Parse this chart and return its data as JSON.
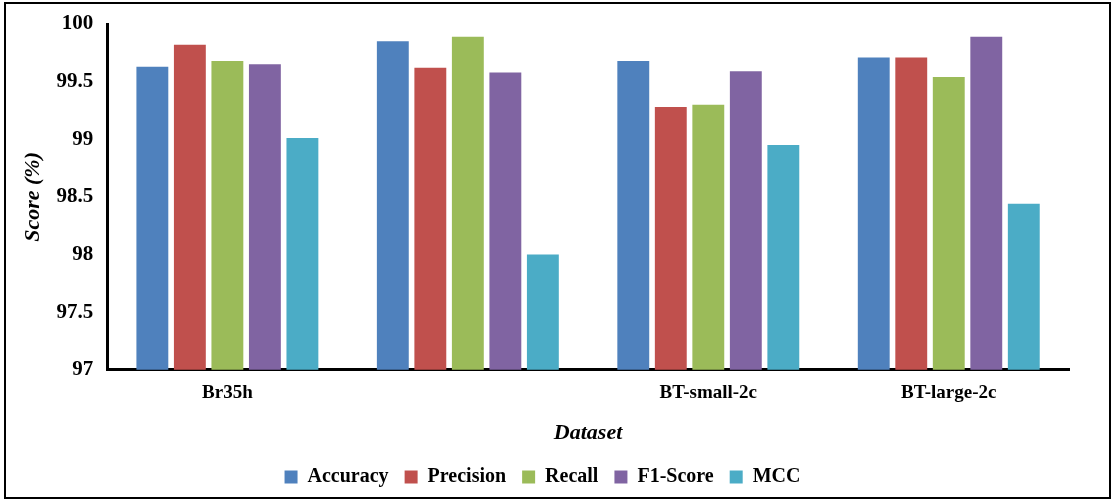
{
  "chart_data": {
    "type": "bar",
    "xlabel": "Dataset",
    "ylabel": "Score (%)",
    "categories": [
      "Br35h",
      null,
      "BT-small-2c",
      "BT-large-2c"
    ],
    "series": [
      {
        "name": "Accuracy",
        "color": "#4f81bd",
        "values": [
          99.63,
          99.85,
          99.68,
          99.71
        ]
      },
      {
        "name": "Precision",
        "color": "#c0504d",
        "values": [
          99.82,
          99.62,
          99.28,
          99.71
        ]
      },
      {
        "name": "Recall",
        "color": "#9bbb59",
        "values": [
          99.68,
          99.89,
          99.3,
          99.54
        ]
      },
      {
        "name": "F1-Score",
        "color": "#8064a2",
        "values": [
          99.65,
          99.58,
          99.59,
          99.89
        ]
      },
      {
        "name": "MCC",
        "color": "#4bacc6",
        "values": [
          99.01,
          98.0,
          98.95,
          98.44
        ]
      }
    ],
    "ylim": [
      97,
      100
    ],
    "yticks": [
      97,
      97.5,
      98,
      98.5,
      99,
      99.5,
      100
    ],
    "grid": false,
    "legend": "bottom"
  }
}
